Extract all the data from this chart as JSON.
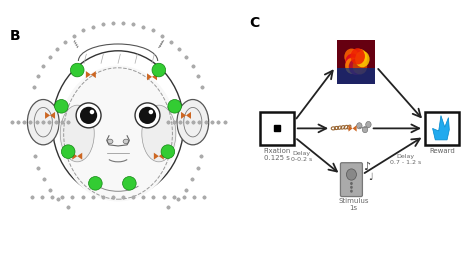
{
  "bg_color": "#ffffff",
  "panel_b_label": "B",
  "panel_c_label": "C",
  "fixation_label": "Fixation\n0.125 s",
  "delay1_label": "Delay\n0-0.2 s",
  "stimulus_label": "Stimulus\n1s",
  "delay2_label": "Delay\n0.7 - 1.2 s",
  "reward_label": "Reward",
  "label_color": "#666666",
  "arrow_color": "#222222",
  "box_color": "#111111",
  "green_dot_color": "#33cc33",
  "orange_marker_color": "#cc6622",
  "bead_color": "#aaaaaa",
  "face_line_color": "#888888"
}
